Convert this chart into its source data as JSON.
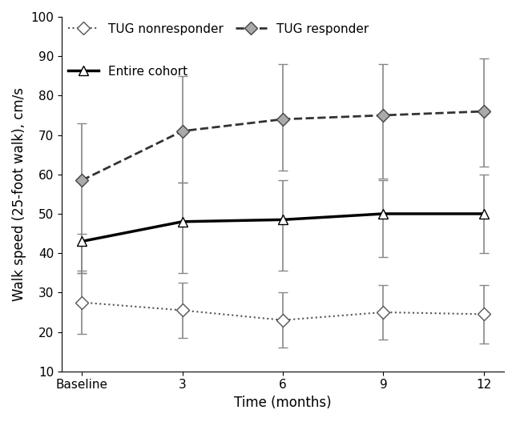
{
  "x_labels": [
    "Baseline",
    "3",
    "6",
    "9",
    "12"
  ],
  "x_numeric": [
    0,
    1,
    2,
    3,
    4
  ],
  "tug_nonresponder_y": [
    27.5,
    25.5,
    23.0,
    25.0,
    24.5
  ],
  "tug_nonresponder_err_low": [
    8.0,
    7.0,
    7.0,
    7.0,
    7.5
  ],
  "tug_nonresponder_err_high": [
    8.0,
    7.0,
    7.0,
    7.0,
    7.5
  ],
  "tug_responder_y": [
    58.5,
    71.0,
    74.0,
    75.0,
    76.0
  ],
  "tug_responder_err_low": [
    23.5,
    13.0,
    13.0,
    16.0,
    14.0
  ],
  "tug_responder_err_high": [
    14.5,
    14.0,
    14.0,
    13.0,
    13.5
  ],
  "entire_cohort_y": [
    43.0,
    48.0,
    48.5,
    50.0,
    50.0
  ],
  "entire_cohort_err_low": [
    8.0,
    13.0,
    13.0,
    11.0,
    10.0
  ],
  "entire_cohort_err_high": [
    2.0,
    10.0,
    10.0,
    8.5,
    10.0
  ],
  "ylim": [
    10,
    100
  ],
  "yticks": [
    10,
    20,
    30,
    40,
    50,
    60,
    70,
    80,
    90,
    100
  ],
  "xlabel": "Time (months)",
  "ylabel": "Walk speed (25-foot walk), cm/s",
  "line_color_nonresponder": "#555555",
  "line_color_responder": "#555555",
  "line_color_cohort": "#000000",
  "marker_size": 8,
  "capsize": 4,
  "legend_labels": [
    "TUG nonresponder",
    "TUG responder",
    "Entire cohort"
  ],
  "label_fontsize": 12,
  "tick_fontsize": 11,
  "legend_fontsize": 11
}
